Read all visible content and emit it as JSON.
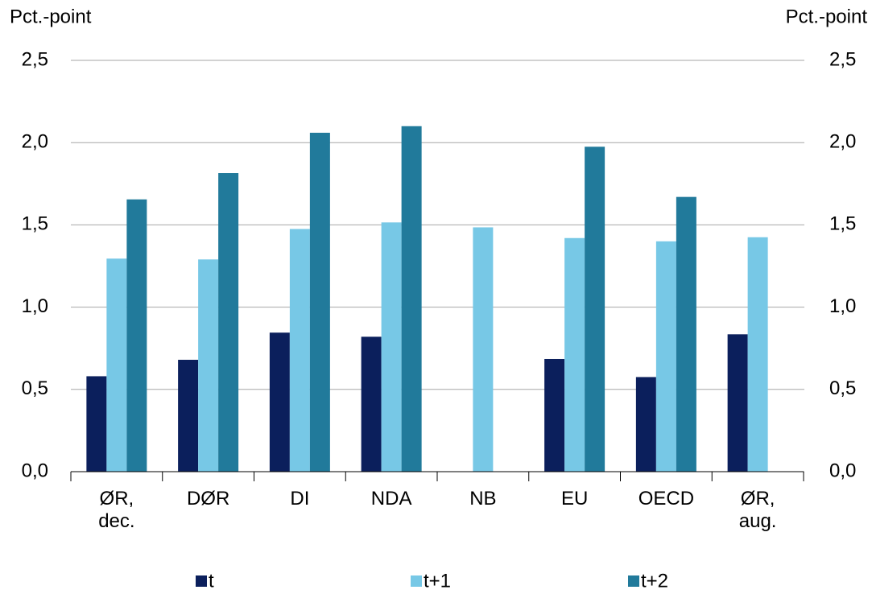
{
  "chart_data": {
    "type": "bar",
    "y_label": "Pct.-point",
    "y2_label": "Pct.-point",
    "categories": [
      "ØR,\ndec.",
      "DØR",
      "DI",
      "NDA",
      "NB",
      "EU",
      "OECD",
      "ØR,\naug."
    ],
    "series": [
      {
        "name": "t",
        "color": "#0b1f5c",
        "values": [
          0.58,
          0.68,
          0.845,
          0.82,
          null,
          0.685,
          0.575,
          0.835
        ]
      },
      {
        "name": "t+1",
        "color": "#77c8e6",
        "values": [
          1.295,
          1.29,
          1.475,
          1.515,
          1.485,
          1.42,
          1.4,
          1.425
        ]
      },
      {
        "name": "t+2",
        "color": "#217a9b",
        "values": [
          1.655,
          1.815,
          2.06,
          2.1,
          null,
          1.975,
          1.67,
          null
        ]
      }
    ],
    "ylim": [
      0,
      2.5
    ],
    "yticks": [
      {
        "value": 0,
        "label": "0,0"
      },
      {
        "value": 0.5,
        "label": "0,5"
      },
      {
        "value": 1,
        "label": "1,0"
      },
      {
        "value": 1.5,
        "label": "1,5"
      },
      {
        "value": 2,
        "label": "2,0"
      },
      {
        "value": 2.5,
        "label": "2,5"
      }
    ],
    "y2lim": [
      0,
      2.5
    ],
    "y2ticks": [
      {
        "value": 0,
        "label": "0,0"
      },
      {
        "value": 0.5,
        "label": "0,5"
      },
      {
        "value": 1,
        "label": "1,0"
      },
      {
        "value": 1.5,
        "label": "1,5"
      },
      {
        "value": 2,
        "label": "2,0"
      },
      {
        "value": 2.5,
        "label": "2,5"
      }
    ],
    "grid": true,
    "legend": "bottom"
  }
}
